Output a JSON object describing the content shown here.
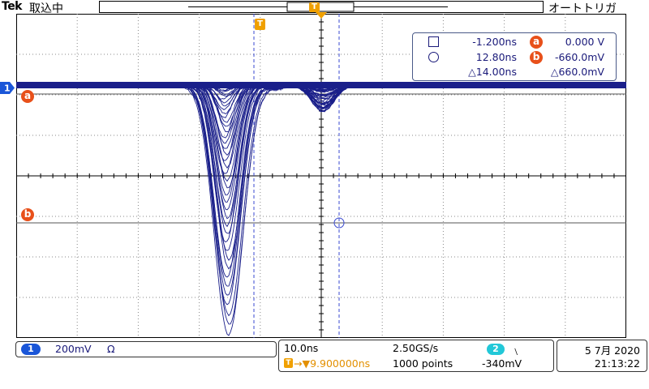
{
  "header": {
    "brand": "Tek",
    "acq_status": "取込中",
    "trigger_status": "オートトリガ"
  },
  "markers": {
    "trigger_T": "T",
    "channel_1": "1",
    "cursor_a": "a",
    "cursor_b": "b"
  },
  "cursor_readout": {
    "a_time": "-1.200ns",
    "a_value": "0.000 V",
    "b_time": "12.80ns",
    "b_value": "-660.0mV",
    "delta_time": "△14.00ns",
    "delta_value": "△660.0mV"
  },
  "channel_info": {
    "channel": "1",
    "scale": "200mV",
    "termination": "Ω"
  },
  "timebase": {
    "time_per_div": "10.0ns",
    "sample_rate": "2.50GS/s",
    "trigger_position": "→▼9.900000ns",
    "record_length": "1000 points",
    "trigger_source": "2",
    "trigger_slope": "﹨",
    "trigger_level": "-340mV"
  },
  "datetime": {
    "date": "5 7月 2020",
    "time": "21:13:22"
  },
  "colors": {
    "trace": "#1a1f8a",
    "cursor": "#3a4ad0",
    "marker": "#e8501a",
    "trigger": "#f0a000",
    "ch2": "#22c8d8"
  }
}
